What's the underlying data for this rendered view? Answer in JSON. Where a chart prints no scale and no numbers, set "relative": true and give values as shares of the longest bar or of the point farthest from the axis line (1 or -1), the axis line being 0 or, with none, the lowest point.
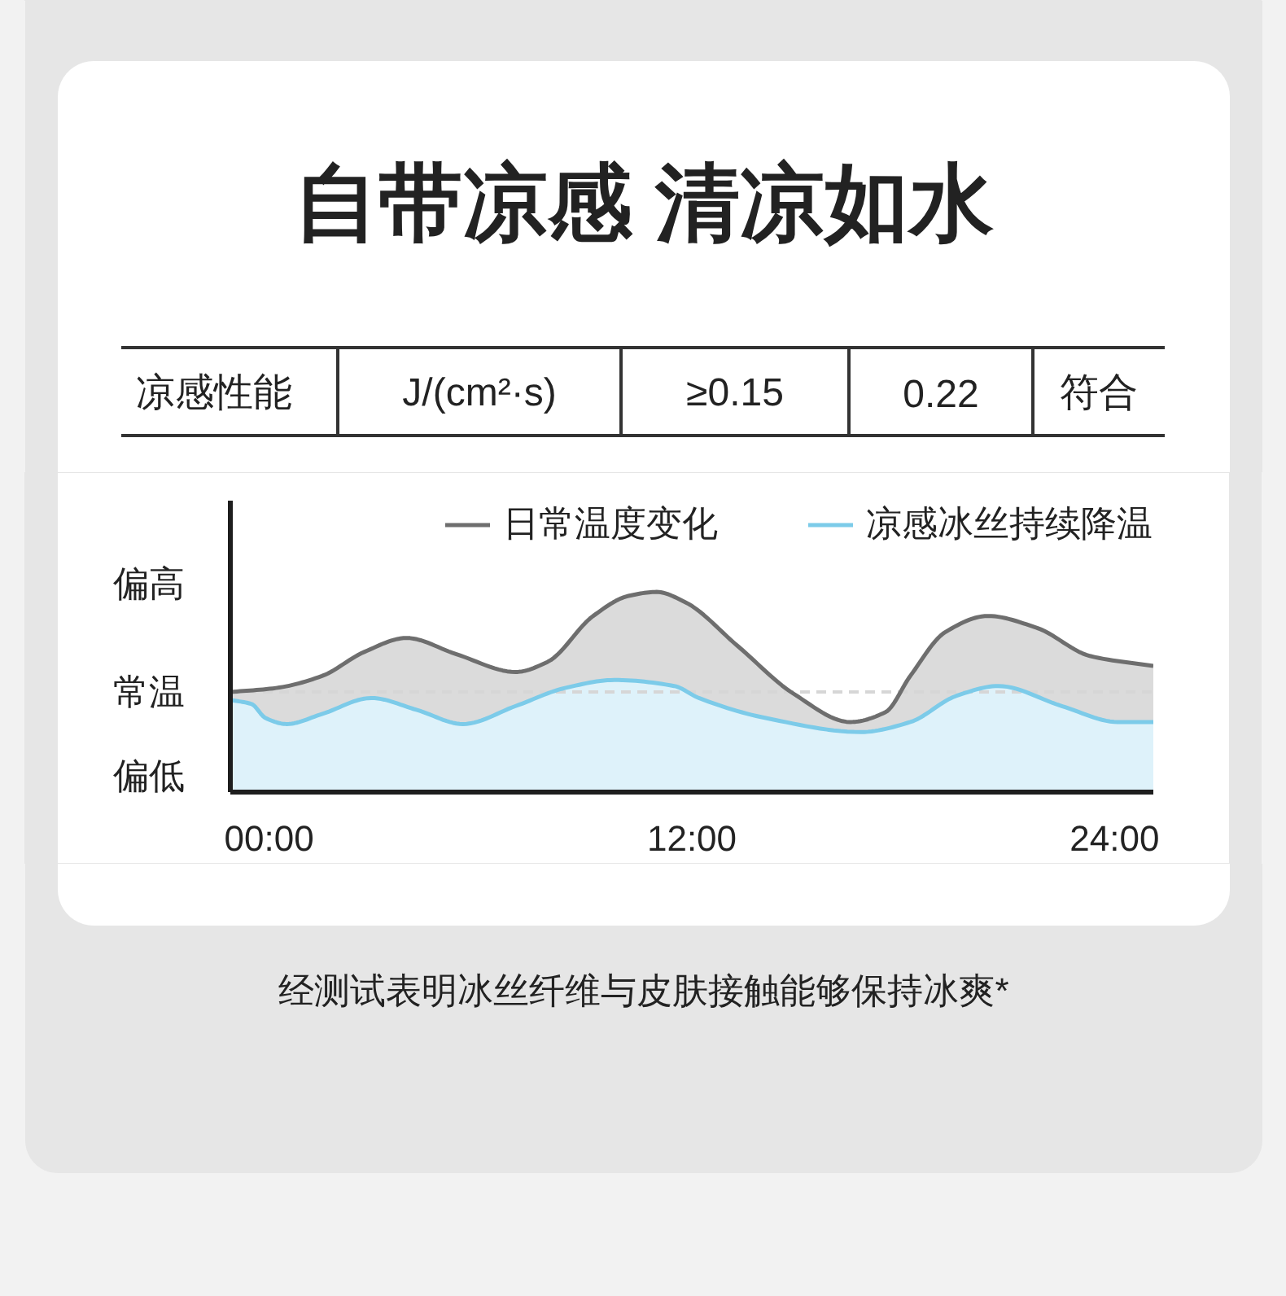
{
  "chart_data": [
    {
      "type": "other",
      "title": "自带凉感 清凉如水",
      "annotations": [
        "凉感性能",
        "J/(cm²·s)",
        "≥0.15",
        "0.22",
        "符合"
      ]
    },
    {
      "type": "area",
      "relative": true,
      "xlim": [
        -1.1,
        25.1
      ],
      "xticks": [
        {
          "value": 0,
          "label": "00:00"
        },
        {
          "value": 12,
          "label": "12:00"
        },
        {
          "value": 24,
          "label": "24:00"
        }
      ],
      "series": [
        {
          "name": "日常温度变化",
          "color": "#6e6e6e",
          "x": [
            -1.1,
            0.2,
            1.5,
            2.7,
            3.9,
            5.3,
            7.0,
            7.9,
            9.2,
            10.2,
            11.0,
            11.8,
            13.3,
            14.9,
            16.5,
            17.5,
            18.2,
            19.2,
            20.4,
            21.8,
            23.3,
            25.1
          ],
          "values": [
            0.5,
            0.52,
            0.58,
            0.7,
            0.77,
            0.69,
            0.6,
            0.65,
            0.88,
            0.98,
            1.0,
            0.95,
            0.73,
            0.49,
            0.35,
            0.4,
            0.58,
            0.8,
            0.88,
            0.82,
            0.68,
            0.63
          ]
        },
        {
          "name": "凉感冰丝持续降温",
          "color": "#7ccbe9",
          "x": [
            -1.1,
            -0.5,
            -0.1,
            0.5,
            1.5,
            2.9,
            4.2,
            5.5,
            7.0,
            8.4,
            9.8,
            11.5,
            12.2,
            14.1,
            16.8,
            18.2,
            19.5,
            20.7,
            22.5,
            24.1,
            25.1
          ],
          "values": [
            0.46,
            0.44,
            0.37,
            0.34,
            0.39,
            0.47,
            0.41,
            0.34,
            0.43,
            0.52,
            0.56,
            0.53,
            0.47,
            0.37,
            0.3,
            0.35,
            0.48,
            0.53,
            0.43,
            0.35,
            0.35
          ]
        }
      ],
      "ref_lines": [
        {
          "axis": "y",
          "value": 0.5,
          "label": "常温",
          "color": "#d6d6d6",
          "line_style": "dashed"
        }
      ],
      "legend": "top right",
      "grid": false,
      "annotations": [
        "偏高",
        "偏低",
        "经测试表明冰丝纤维与皮肤接触能够保持冰爽*"
      ]
    }
  ]
}
